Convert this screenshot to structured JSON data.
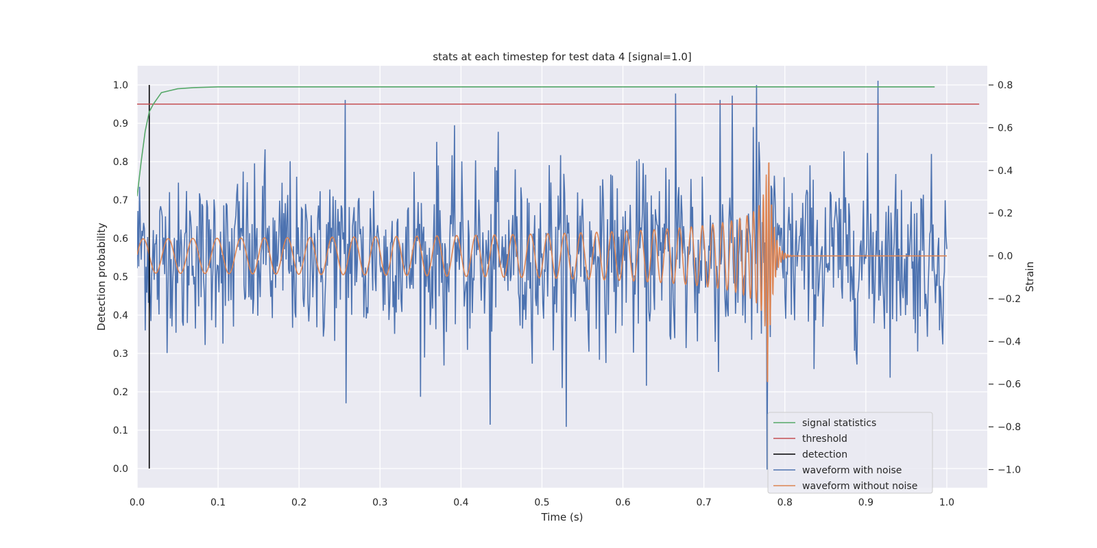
{
  "chart_data": {
    "type": "line",
    "title": "stats at each timestep for test data 4 [signal=1.0]",
    "xlabel": "Time (s)",
    "ylabel": "Detection probability",
    "y2label": "Strain",
    "xlim": [
      0.0,
      1.05
    ],
    "ylim": [
      -0.05,
      1.05
    ],
    "y2lim": [
      -1.085,
      0.89
    ],
    "x_ticks": [
      "0.0",
      "0.1",
      "0.2",
      "0.3",
      "0.4",
      "0.5",
      "0.6",
      "0.7",
      "0.8",
      "0.9",
      "1.0"
    ],
    "y_ticks": [
      "0.0",
      "0.1",
      "0.2",
      "0.3",
      "0.4",
      "0.5",
      "0.6",
      "0.7",
      "0.8",
      "0.9",
      "1.0"
    ],
    "y2_ticks": [
      "−1.0",
      "−0.8",
      "−0.6",
      "−0.4",
      "−0.2",
      "0.0",
      "0.2",
      "0.4",
      "0.6",
      "0.8"
    ],
    "grid": true,
    "legend_position": "lower-right",
    "legend": [
      "signal statistics",
      "threshold",
      "detection",
      "waveform with noise",
      "waveform without noise"
    ],
    "colors": {
      "signal_statistics": "#55a868",
      "threshold": "#c44e52",
      "detection": "#000000",
      "waveform_with_noise": "#4c72b0",
      "waveform_without_noise": "#dd8452",
      "plot_background": "#eaeaf2",
      "grid": "#ffffff"
    },
    "series": [
      {
        "name": "signal statistics",
        "axis": "left",
        "x": [
          0.0,
          0.005,
          0.01,
          0.015,
          0.02,
          0.03,
          0.04,
          0.05,
          0.07,
          0.1,
          0.2,
          0.4,
          0.6,
          0.8,
          0.985
        ],
        "y": [
          0.71,
          0.8,
          0.88,
          0.93,
          0.95,
          0.98,
          0.985,
          0.99,
          0.993,
          0.995,
          0.995,
          0.995,
          0.995,
          0.995,
          0.995
        ]
      },
      {
        "name": "threshold",
        "axis": "left",
        "x": [
          0.0,
          1.04
        ],
        "y": [
          0.95,
          0.95
        ]
      },
      {
        "name": "detection",
        "axis": "left",
        "x": [
          0.015,
          0.015
        ],
        "y": [
          0.0,
          1.0
        ]
      },
      {
        "name": "waveform with noise",
        "axis": "right",
        "x_range": [
          0.0,
          1.0
        ],
        "n_points": 1000,
        "noise_sigma": 0.2,
        "peaks": [
          {
            "x": 0.257,
            "y": 0.73
          },
          {
            "x": 0.258,
            "y": -0.69
          },
          {
            "x": 0.436,
            "y": -0.79
          },
          {
            "x": 0.53,
            "y": -0.8
          },
          {
            "x": 0.665,
            "y": 0.76
          },
          {
            "x": 0.72,
            "y": 0.73
          },
          {
            "x": 0.765,
            "y": 0.8
          },
          {
            "x": 0.778,
            "y": -1.0
          },
          {
            "x": 0.915,
            "y": 0.82
          }
        ]
      },
      {
        "name": "waveform without noise",
        "axis": "right",
        "x_range": [
          0.0,
          1.0
        ],
        "chirp_start_freq_hz": 32,
        "merger_time": 0.778,
        "amplitude_start": 0.08,
        "amplitude_peak": 0.68,
        "ringdown_end": 0.8
      }
    ]
  }
}
